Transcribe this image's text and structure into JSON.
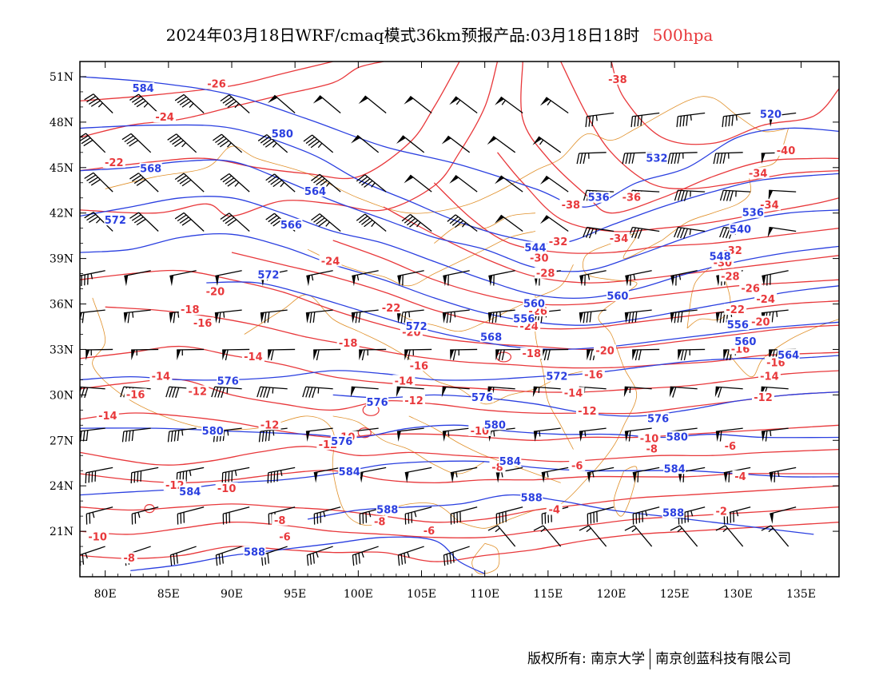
{
  "title": {
    "main": "2024年03月18日WRF/cmaq模式36km预报产品:03月18日18时",
    "level": "500hpa"
  },
  "colors": {
    "temperature": "#e8383b",
    "height": "#2a3fe0",
    "border": "#e0902a",
    "barb": "#000000"
  },
  "axes": {
    "x_ticks": [
      "80E",
      "85E",
      "90E",
      "95E",
      "100E",
      "105E",
      "110E",
      "115E",
      "120E",
      "125E",
      "130E",
      "135E"
    ],
    "y_ticks": [
      "51N",
      "48N",
      "45N",
      "42N",
      "39N",
      "36N",
      "33N",
      "30N",
      "27N",
      "24N",
      "21N"
    ]
  },
  "chart_data": {
    "type": "map",
    "lon_range": [
      78,
      138
    ],
    "lat_range": [
      18,
      52
    ],
    "height_labels": [
      {
        "text": "584",
        "lon": 83.0,
        "lat": 50.2
      },
      {
        "text": "580",
        "lon": 94.0,
        "lat": 47.2
      },
      {
        "text": "568",
        "lon": 83.6,
        "lat": 44.9
      },
      {
        "text": "564",
        "lon": 96.6,
        "lat": 43.4
      },
      {
        "text": "572",
        "lon": 80.8,
        "lat": 41.5
      },
      {
        "text": "566",
        "lon": 94.7,
        "lat": 41.2
      },
      {
        "text": "572",
        "lon": 92.9,
        "lat": 37.9
      },
      {
        "text": "520",
        "lon": 132.6,
        "lat": 48.5
      },
      {
        "text": "532",
        "lon": 123.6,
        "lat": 45.6
      },
      {
        "text": "536",
        "lon": 119.0,
        "lat": 43.0
      },
      {
        "text": "536",
        "lon": 131.2,
        "lat": 42.0
      },
      {
        "text": "540",
        "lon": 130.2,
        "lat": 40.9
      },
      {
        "text": "544",
        "lon": 114.0,
        "lat": 39.7
      },
      {
        "text": "548",
        "lon": 128.6,
        "lat": 39.1
      },
      {
        "text": "560",
        "lon": 120.5,
        "lat": 36.5
      },
      {
        "text": "560",
        "lon": 113.9,
        "lat": 36.0
      },
      {
        "text": "556",
        "lon": 113.1,
        "lat": 35.0
      },
      {
        "text": "556",
        "lon": 130.0,
        "lat": 34.6
      },
      {
        "text": "568",
        "lon": 110.5,
        "lat": 33.8
      },
      {
        "text": "560",
        "lon": 130.6,
        "lat": 33.5
      },
      {
        "text": "564",
        "lon": 134.0,
        "lat": 32.6
      },
      {
        "text": "572",
        "lon": 104.6,
        "lat": 34.5
      },
      {
        "text": "576",
        "lon": 89.7,
        "lat": 30.9
      },
      {
        "text": "572",
        "lon": 115.7,
        "lat": 31.2
      },
      {
        "text": "576",
        "lon": 101.5,
        "lat": 29.5
      },
      {
        "text": "576",
        "lon": 109.8,
        "lat": 29.8
      },
      {
        "text": "576",
        "lon": 123.7,
        "lat": 28.4
      },
      {
        "text": "580",
        "lon": 88.5,
        "lat": 27.6
      },
      {
        "text": "580",
        "lon": 110.8,
        "lat": 28.0
      },
      {
        "text": "580",
        "lon": 125.2,
        "lat": 27.2
      },
      {
        "text": "584",
        "lon": 86.7,
        "lat": 23.6
      },
      {
        "text": "584",
        "lon": 99.3,
        "lat": 24.9
      },
      {
        "text": "584",
        "lon": 112.0,
        "lat": 25.6
      },
      {
        "text": "584",
        "lon": 125.0,
        "lat": 25.1
      },
      {
        "text": "588",
        "lon": 102.3,
        "lat": 22.4
      },
      {
        "text": "588",
        "lon": 113.7,
        "lat": 23.2
      },
      {
        "text": "588",
        "lon": 124.9,
        "lat": 22.2
      },
      {
        "text": "588",
        "lon": 91.8,
        "lat": 19.6
      },
      {
        "text": "576",
        "lon": 98.7,
        "lat": 26.9
      }
    ],
    "temperature_labels": [
      {
        "text": "-26",
        "lon": 88.8,
        "lat": 50.5
      },
      {
        "text": "-24",
        "lon": 84.7,
        "lat": 48.3
      },
      {
        "text": "-22",
        "lon": 80.7,
        "lat": 45.3
      },
      {
        "text": "-38",
        "lon": 120.5,
        "lat": 50.8
      },
      {
        "text": "-40",
        "lon": 133.8,
        "lat": 46.1
      },
      {
        "text": "-34",
        "lon": 131.6,
        "lat": 44.6
      },
      {
        "text": "-36",
        "lon": 121.6,
        "lat": 43.0
      },
      {
        "text": "-38",
        "lon": 116.8,
        "lat": 42.5
      },
      {
        "text": "-34",
        "lon": 132.5,
        "lat": 42.5
      },
      {
        "text": "-32",
        "lon": 115.8,
        "lat": 40.1
      },
      {
        "text": "-34",
        "lon": 120.6,
        "lat": 40.3
      },
      {
        "text": "-32",
        "lon": 129.6,
        "lat": 39.5
      },
      {
        "text": "-30",
        "lon": 114.3,
        "lat": 39.0
      },
      {
        "text": "-30",
        "lon": 128.8,
        "lat": 38.7
      },
      {
        "text": "-28",
        "lon": 114.8,
        "lat": 38.0
      },
      {
        "text": "-28",
        "lon": 129.4,
        "lat": 37.8
      },
      {
        "text": "-26",
        "lon": 131.0,
        "lat": 37.0
      },
      {
        "text": "-24",
        "lon": 132.2,
        "lat": 36.3
      },
      {
        "text": "-22",
        "lon": 129.8,
        "lat": 35.6
      },
      {
        "text": "-26",
        "lon": 114.2,
        "lat": 35.5
      },
      {
        "text": "-24",
        "lon": 113.5,
        "lat": 34.5
      },
      {
        "text": "-20",
        "lon": 131.8,
        "lat": 34.8
      },
      {
        "text": "-16",
        "lon": 130.2,
        "lat": 33.0
      },
      {
        "text": "-16",
        "lon": 133.0,
        "lat": 32.1
      },
      {
        "text": "-14",
        "lon": 132.5,
        "lat": 31.2
      },
      {
        "text": "-12",
        "lon": 132.0,
        "lat": 29.8
      },
      {
        "text": "-18",
        "lon": 86.7,
        "lat": 35.6
      },
      {
        "text": "-20",
        "lon": 88.7,
        "lat": 36.8
      },
      {
        "text": "-16",
        "lon": 87.7,
        "lat": 34.7
      },
      {
        "text": "-24",
        "lon": 97.8,
        "lat": 38.8
      },
      {
        "text": "-22",
        "lon": 102.6,
        "lat": 35.7
      },
      {
        "text": "-20",
        "lon": 104.2,
        "lat": 34.1
      },
      {
        "text": "-18",
        "lon": 99.2,
        "lat": 33.4
      },
      {
        "text": "-18",
        "lon": 113.7,
        "lat": 32.7
      },
      {
        "text": "-20",
        "lon": 119.5,
        "lat": 32.9
      },
      {
        "text": "-16",
        "lon": 104.8,
        "lat": 31.9
      },
      {
        "text": "-16",
        "lon": 118.6,
        "lat": 31.3
      },
      {
        "text": "-14",
        "lon": 91.7,
        "lat": 32.5
      },
      {
        "text": "-14",
        "lon": 84.4,
        "lat": 31.2
      },
      {
        "text": "-14",
        "lon": 103.6,
        "lat": 30.9
      },
      {
        "text": "-14",
        "lon": 117.0,
        "lat": 30.1
      },
      {
        "text": "-16",
        "lon": 82.4,
        "lat": 30.0
      },
      {
        "text": "-12",
        "lon": 87.3,
        "lat": 30.2
      },
      {
        "text": "-12",
        "lon": 104.4,
        "lat": 29.6
      },
      {
        "text": "-12",
        "lon": 118.1,
        "lat": 28.9
      },
      {
        "text": "-14",
        "lon": 80.2,
        "lat": 28.6
      },
      {
        "text": "-12",
        "lon": 93.0,
        "lat": 28.0
      },
      {
        "text": "-10",
        "lon": 99.0,
        "lat": 27.2
      },
      {
        "text": "-12",
        "lon": 97.6,
        "lat": 26.7
      },
      {
        "text": "-10",
        "lon": 109.6,
        "lat": 27.6
      },
      {
        "text": "-10",
        "lon": 123.0,
        "lat": 27.1
      },
      {
        "text": "-8",
        "lon": 123.2,
        "lat": 26.4
      },
      {
        "text": "-6",
        "lon": 129.4,
        "lat": 26.6
      },
      {
        "text": "-8",
        "lon": 111.0,
        "lat": 25.2
      },
      {
        "text": "-6",
        "lon": 117.3,
        "lat": 25.3
      },
      {
        "text": "-12",
        "lon": 85.5,
        "lat": 24.0
      },
      {
        "text": "-10",
        "lon": 89.6,
        "lat": 23.8
      },
      {
        "text": "-4",
        "lon": 130.2,
        "lat": 24.6
      },
      {
        "text": "-4",
        "lon": 115.5,
        "lat": 22.4
      },
      {
        "text": "-2",
        "lon": 128.7,
        "lat": 22.3
      },
      {
        "text": "-8",
        "lon": 93.8,
        "lat": 21.7
      },
      {
        "text": "-8",
        "lon": 101.7,
        "lat": 21.6
      },
      {
        "text": "-6",
        "lon": 105.6,
        "lat": 21.0
      },
      {
        "text": "-6",
        "lon": 94.2,
        "lat": 20.6
      },
      {
        "text": "-10",
        "lon": 79.4,
        "lat": 20.6
      },
      {
        "text": "-8",
        "lon": 81.9,
        "lat": 19.2
      }
    ]
  },
  "footer": {
    "copyright": "版权所有: 南京大学",
    "company": "南京创蓝科技有限公司"
  }
}
